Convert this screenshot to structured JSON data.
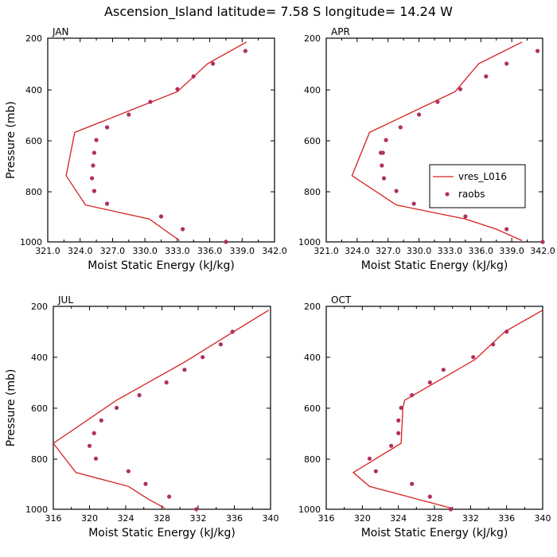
{
  "page": {
    "title": "Ascension_Island  latitude= 7.58 S longitude= 14.24 W"
  },
  "chart_data": [
    {
      "type": "line",
      "panel": "JAN",
      "xlabel": "Moist Static Energy (kJ/kg)",
      "ylabel": "Pressure (mb)",
      "xlim": [
        321,
        342
      ],
      "ylim": [
        1000,
        200
      ],
      "xticks": [
        321,
        324,
        327,
        330,
        333,
        336,
        339,
        342
      ],
      "xtick_labels": [
        "321.0",
        "324.0",
        "327.0",
        "330.0",
        "333.0",
        "336.0",
        "339.0",
        "342.0"
      ],
      "yticks": [
        200,
        400,
        600,
        800,
        1000
      ],
      "ytick_labels": [
        "200",
        "400",
        "600",
        "800",
        "1000"
      ],
      "series": [
        {
          "name": "vres_L016",
          "kind": "line",
          "color": "#d62020",
          "x": [
            339.4,
            335.8,
            333.0,
            323.5,
            322.7,
            324.5,
            330.4,
            333.2
          ],
          "y": [
            215,
            300,
            410,
            570,
            740,
            855,
            910,
            995
          ]
        },
        {
          "name": "raobs",
          "kind": "points",
          "color": "#b03060",
          "x": [
            339.3,
            336.3,
            334.5,
            333.0,
            330.5,
            328.5,
            326.5,
            325.5,
            325.3,
            325.2,
            325.1,
            325.3,
            325.3,
            326.5,
            331.5,
            333.5,
            337.5
          ],
          "y": [
            250,
            300,
            350,
            400,
            450,
            500,
            550,
            600,
            650,
            700,
            750,
            800,
            800,
            850,
            900,
            950,
            1000
          ]
        }
      ]
    },
    {
      "type": "line",
      "panel": "APR",
      "xlabel": "Moist Static Energy (kJ/kg)",
      "ylabel": "",
      "xlim": [
        321,
        342
      ],
      "ylim": [
        1000,
        200
      ],
      "xticks": [
        321,
        324,
        327,
        330,
        333,
        336,
        339,
        342
      ],
      "xtick_labels": [
        "321.0",
        "324.0",
        "327.0",
        "330.0",
        "333.0",
        "336.0",
        "339.0",
        "342.0"
      ],
      "yticks": [
        200,
        400,
        600,
        800,
        1000
      ],
      "ytick_labels": [
        "200",
        "400",
        "600",
        "800",
        "1000"
      ],
      "legend": {
        "position": "right-middle",
        "entries": [
          "vres_L016",
          "raobs"
        ]
      },
      "series": [
        {
          "name": "vres_L016",
          "kind": "line",
          "color": "#d62020",
          "x": [
            340.0,
            335.8,
            333.5,
            325.2,
            323.5,
            327.8,
            334.5,
            337.5,
            340.0
          ],
          "y": [
            215,
            300,
            410,
            570,
            740,
            855,
            910,
            950,
            995
          ]
        },
        {
          "name": "raobs",
          "kind": "points",
          "color": "#b03060",
          "x": [
            341.5,
            338.5,
            336.5,
            334.0,
            331.8,
            330.0,
            328.2,
            326.8,
            326.5,
            326.3,
            326.4,
            326.6,
            327.8,
            329.5,
            334.5,
            338.5,
            342.0
          ],
          "y": [
            250,
            300,
            350,
            400,
            450,
            500,
            550,
            600,
            650,
            650,
            700,
            750,
            800,
            850,
            900,
            950,
            1000
          ]
        }
      ]
    },
    {
      "type": "line",
      "panel": "JUL",
      "xlabel": "Moist Static Energy (kJ/kg)",
      "ylabel": "Pressure (mb)",
      "xlim": [
        316,
        340
      ],
      "ylim": [
        1000,
        200
      ],
      "xticks": [
        316,
        320,
        324,
        328,
        332,
        336,
        340
      ],
      "xtick_labels": [
        "316",
        "320",
        "324",
        "328",
        "332",
        "336",
        "340"
      ],
      "yticks": [
        200,
        400,
        600,
        800,
        1000
      ],
      "ytick_labels": [
        "200",
        "400",
        "600",
        "800",
        "1000"
      ],
      "series": [
        {
          "name": "vres_L016",
          "kind": "line",
          "color": "#d62020",
          "x": [
            339.8,
            335.0,
            330.5,
            323.0,
            316.0,
            318.5,
            324.3,
            326.5,
            328.3
          ],
          "y": [
            215,
            320,
            420,
            570,
            740,
            855,
            910,
            960,
            995
          ]
        },
        {
          "name": "raobs",
          "kind": "points",
          "color": "#b03060",
          "x": [
            335.8,
            334.5,
            332.5,
            330.5,
            328.5,
            325.5,
            323.0,
            321.3,
            320.5,
            320.0,
            320.7,
            324.3,
            326.2,
            328.8,
            331.8
          ],
          "y": [
            300,
            350,
            400,
            450,
            500,
            550,
            600,
            650,
            700,
            750,
            800,
            850,
            900,
            950,
            1000
          ]
        }
      ]
    },
    {
      "type": "line",
      "panel": "OCT",
      "xlabel": "Moist Static Energy (kJ/kg)",
      "ylabel": "",
      "xlim": [
        316,
        340
      ],
      "ylim": [
        1000,
        200
      ],
      "xticks": [
        316,
        320,
        324,
        328,
        332,
        336,
        340
      ],
      "xtick_labels": [
        "316",
        "320",
        "324",
        "328",
        "332",
        "336",
        "340"
      ],
      "yticks": [
        200,
        400,
        600,
        800,
        1000
      ],
      "ytick_labels": [
        "200",
        "400",
        "600",
        "800",
        "1000"
      ],
      "series": [
        {
          "name": "vres_L016",
          "kind": "line",
          "color": "#d62020",
          "x": [
            340.0,
            335.8,
            332.5,
            324.7,
            324.5,
            324.3,
            319.0,
            320.8,
            329.8
          ],
          "y": [
            215,
            300,
            410,
            570,
            600,
            740,
            855,
            910,
            995
          ]
        },
        {
          "name": "raobs",
          "kind": "points",
          "color": "#b03060",
          "x": [
            336.0,
            334.5,
            332.3,
            329.0,
            327.5,
            325.5,
            324.3,
            324.0,
            324.0,
            323.2,
            320.8,
            321.5,
            325.5,
            327.5,
            329.8
          ],
          "y": [
            300,
            350,
            400,
            450,
            500,
            550,
            600,
            650,
            700,
            750,
            800,
            850,
            900,
            950,
            1000
          ]
        }
      ]
    }
  ]
}
